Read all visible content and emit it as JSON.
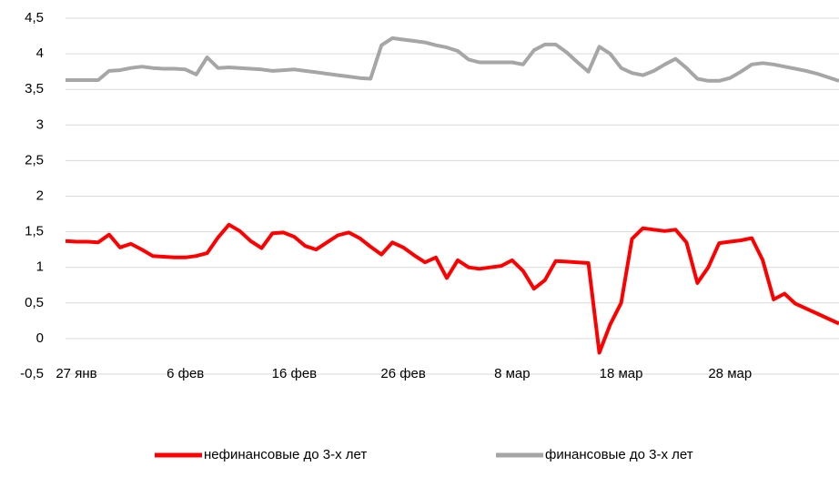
{
  "chart_data": {
    "type": "line",
    "categories": [
      null,
      "27 янв",
      null,
      null,
      null,
      null,
      null,
      null,
      null,
      null,
      null,
      "6 фев",
      null,
      null,
      null,
      null,
      null,
      null,
      null,
      null,
      null,
      "16 фев",
      null,
      null,
      null,
      null,
      null,
      null,
      null,
      null,
      null,
      "26 фев",
      null,
      null,
      null,
      null,
      null,
      null,
      null,
      null,
      null,
      "8 мар",
      null,
      null,
      null,
      null,
      null,
      null,
      null,
      null,
      null,
      "18 мар",
      null,
      null,
      null,
      null,
      null,
      null,
      null,
      null,
      null,
      "28 мар",
      null,
      null,
      null,
      null,
      null,
      null,
      null,
      null,
      null,
      null
    ],
    "series": [
      {
        "name": "нефинансовые до 3-х лет",
        "color": "#ff0000",
        "values": [
          1.37,
          1.36,
          1.36,
          1.35,
          1.46,
          1.28,
          1.33,
          1.25,
          1.16,
          1.15,
          1.14,
          1.14,
          1.16,
          1.2,
          1.42,
          1.6,
          1.51,
          1.37,
          1.27,
          1.48,
          1.49,
          1.43,
          1.3,
          1.25,
          1.35,
          1.45,
          1.49,
          1.41,
          1.29,
          1.18,
          1.35,
          1.28,
          1.17,
          1.07,
          1.14,
          0.85,
          1.1,
          1.0,
          0.98,
          1.0,
          1.02,
          1.1,
          0.95,
          0.7,
          0.82,
          1.09,
          1.08,
          1.07,
          1.06,
          -0.2,
          0.2,
          0.5,
          1.4,
          1.55,
          1.53,
          1.51,
          1.53,
          1.35,
          0.78,
          1.0,
          1.34,
          1.36,
          1.38,
          1.41,
          1.1,
          0.55,
          0.63,
          0.49,
          0.42,
          0.35,
          0.28,
          0.21
        ]
      },
      {
        "name": "финансовые до 3-х лет",
        "color": "#a6a6a6",
        "values": [
          3.63,
          3.63,
          3.63,
          3.63,
          3.76,
          3.77,
          3.8,
          3.82,
          3.8,
          3.79,
          3.79,
          3.78,
          3.71,
          3.95,
          3.8,
          3.81,
          3.8,
          3.79,
          3.78,
          3.76,
          3.77,
          3.78,
          3.76,
          3.74,
          3.72,
          3.7,
          3.68,
          3.66,
          3.65,
          4.12,
          4.22,
          4.2,
          4.18,
          4.16,
          4.12,
          4.09,
          4.04,
          3.92,
          3.88,
          3.88,
          3.88,
          3.88,
          3.85,
          4.05,
          4.13,
          4.13,
          4.02,
          3.88,
          3.75,
          4.1,
          4.0,
          3.8,
          3.73,
          3.7,
          3.76,
          3.85,
          3.93,
          3.8,
          3.65,
          3.62,
          3.62,
          3.66,
          3.75,
          3.85,
          3.87,
          3.85,
          3.82,
          3.79,
          3.76,
          3.72,
          3.67,
          3.62
        ]
      }
    ],
    "ylim": [
      -0.5,
      4.5
    ],
    "yticks": [
      {
        "value": -0.5,
        "label": "-0,5"
      },
      0,
      {
        "value": 0.5,
        "label": "0,5"
      },
      1,
      {
        "value": 1.5,
        "label": "1,5"
      },
      2,
      {
        "value": 2.5,
        "label": "2,5"
      },
      3,
      {
        "value": 3.5,
        "label": "3,5"
      },
      4,
      {
        "value": 4.5,
        "label": "4,5"
      }
    ],
    "grid": true,
    "legend": "bottom"
  }
}
